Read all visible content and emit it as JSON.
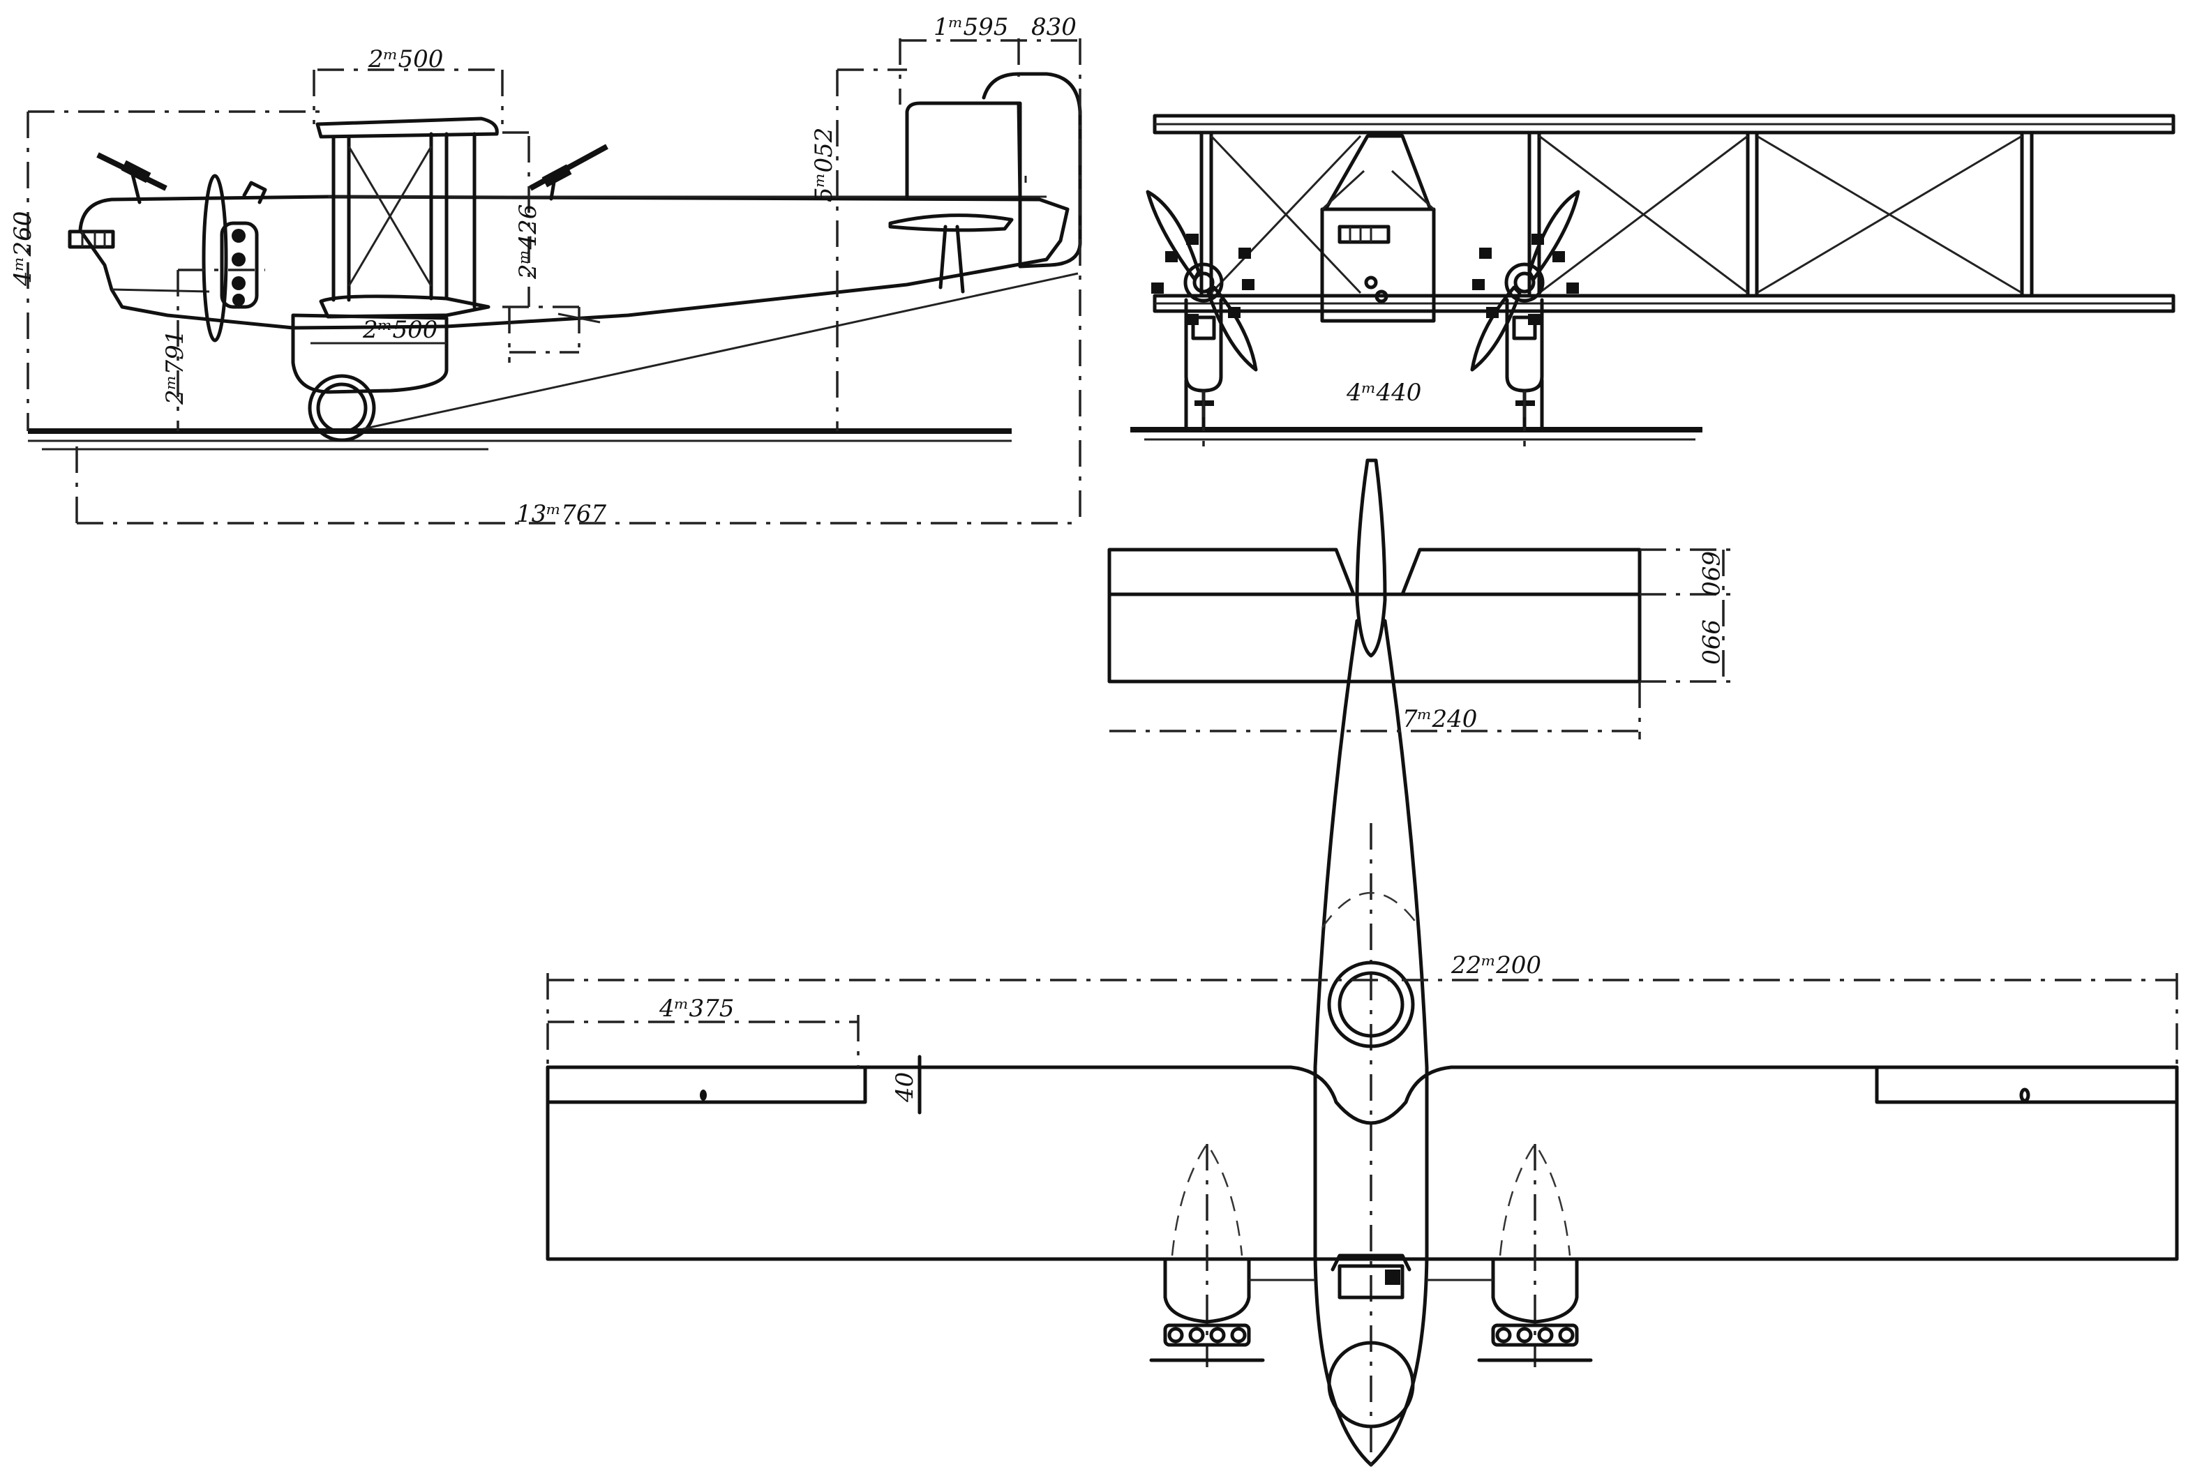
{
  "dimensions": {
    "side_upper_gap": "2ᵐ500",
    "side_lower_gap": "2ᵐ500",
    "side_tail_chord": "1ᵐ595",
    "side_tail_rudder": "830",
    "side_height": "4ᵐ260",
    "side_tail_height": "5ᵐ052",
    "side_wing_gap": "2ᵐ426",
    "side_gear_height": "2ᵐ791",
    "side_length": "13ᵐ767",
    "front_track": "4ᵐ440",
    "tail_stab_chord": "690",
    "tail_elevator_chord": "990",
    "tail_span": "7ᵐ240",
    "plan_span": "22ᵐ200",
    "plan_aileron_span": "4ᵐ375",
    "plan_aileron_chord": "40"
  }
}
